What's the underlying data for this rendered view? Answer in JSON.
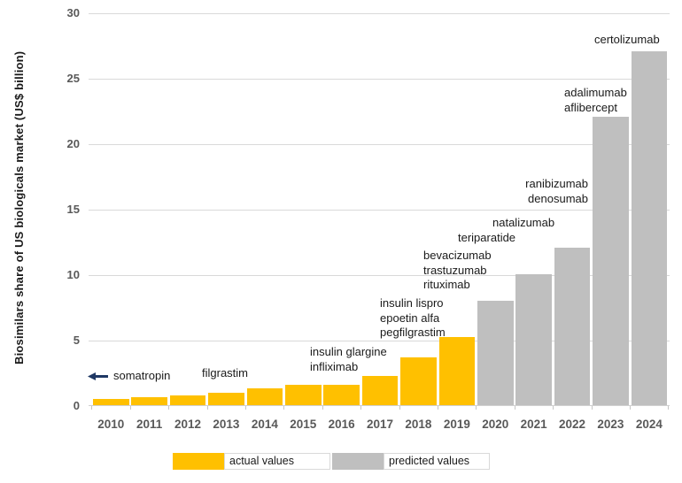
{
  "chart_data": {
    "type": "bar",
    "title": "",
    "xlabel": "",
    "ylabel": "Biosimilars share of US biologicals market (US$ billion)",
    "ylim": [
      0,
      30
    ],
    "yticks": [
      0,
      5,
      10,
      15,
      20,
      25,
      30
    ],
    "grid": "horizontal",
    "legend_position": "bottom",
    "categories": [
      "2010",
      "2011",
      "2012",
      "2013",
      "2014",
      "2015",
      "2016",
      "2017",
      "2018",
      "2019",
      "2020",
      "2021",
      "2022",
      "2023",
      "2024"
    ],
    "series": [
      {
        "name": "actual values",
        "color": "#FFC000",
        "values": [
          0.5,
          0.6,
          0.75,
          0.95,
          1.3,
          1.55,
          1.55,
          2.2,
          3.65,
          5.2,
          null,
          null,
          null,
          null,
          null
        ]
      },
      {
        "name": "predicted values",
        "color": "#BFBFBF",
        "values": [
          null,
          null,
          null,
          null,
          null,
          null,
          null,
          null,
          null,
          null,
          8,
          10,
          12,
          22,
          27
        ]
      }
    ],
    "annotations": [
      {
        "id": "somatropin",
        "lines": [
          "somatropin"
        ],
        "target": "2010",
        "arrow": "left"
      },
      {
        "id": "filgrastim",
        "lines": [
          "filgrastim"
        ],
        "target": "2013"
      },
      {
        "id": "insulin-glargine",
        "lines": [
          "insulin glargine",
          "infliximab"
        ],
        "target": "2015-2016"
      },
      {
        "id": "insulin-lispro",
        "lines": [
          "insulin lispro",
          "epoetin alfa",
          "pegfilgrastim"
        ],
        "target": "2017-2018"
      },
      {
        "id": "bevacizumab",
        "lines": [
          "bevacizumab",
          "trastuzumab",
          "rituximab"
        ],
        "target": "2019"
      },
      {
        "id": "teriparatide",
        "lines": [
          "teriparatide"
        ],
        "target": "2020"
      },
      {
        "id": "natalizumab",
        "lines": [
          "natalizumab"
        ],
        "target": "2021"
      },
      {
        "id": "ranibizumab",
        "lines": [
          "ranibizumab",
          "denosumab"
        ],
        "target": "2022"
      },
      {
        "id": "adalimumab",
        "lines": [
          "adalimumab",
          "aflibercept"
        ],
        "target": "2023"
      },
      {
        "id": "certolizumab",
        "lines": [
          "certolizumab"
        ],
        "target": "2024"
      }
    ],
    "colors": {
      "actual": "#FFC000",
      "predicted": "#BFBFBF",
      "gridline": "#D9D9D9",
      "axis_text": "#595959",
      "annotation_text": "#1A1A1A",
      "arrow": "#1F3864"
    }
  }
}
